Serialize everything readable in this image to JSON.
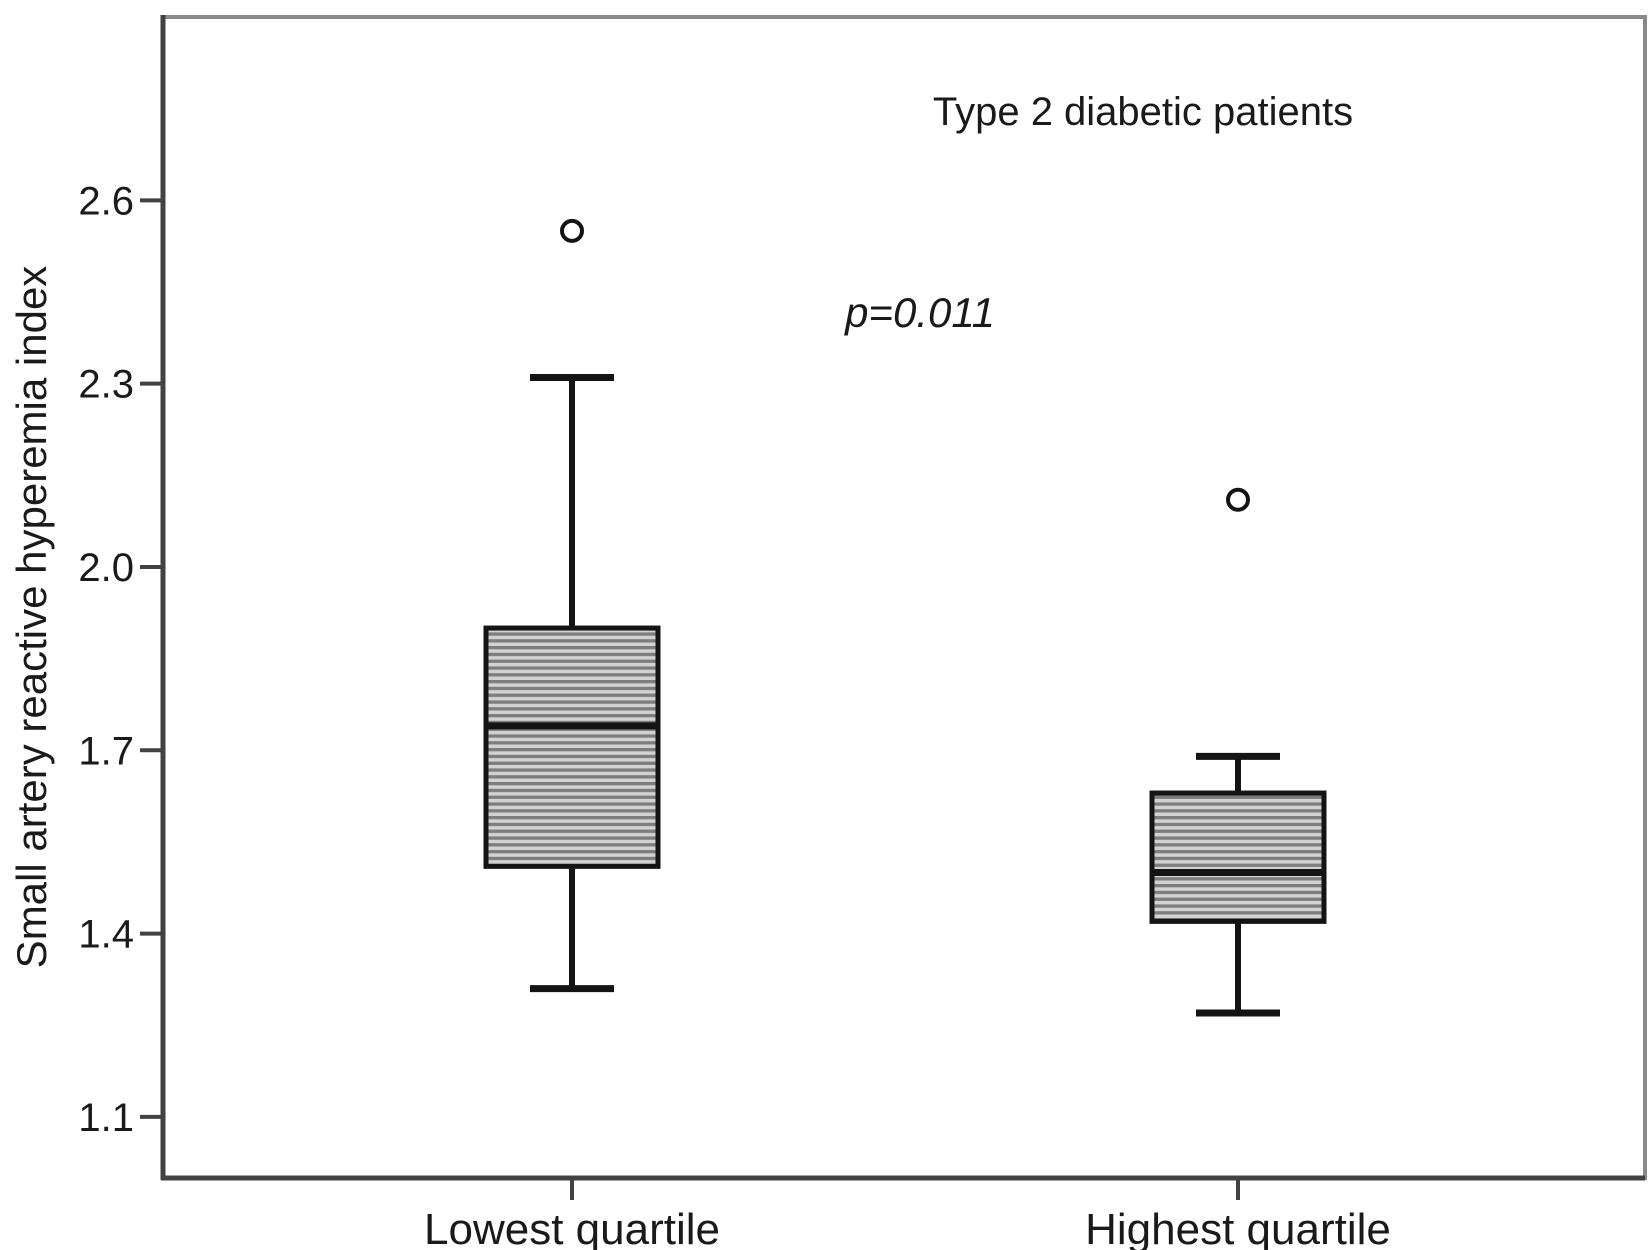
{
  "chart_data": {
    "type": "boxplot",
    "title": "Type 2 diabetic patients",
    "annotation": "p=0.011",
    "ylabel": "Small artery reactive hyperemia index",
    "xlabel": "",
    "categories": [
      "Lowest quartile",
      "Highest quartile"
    ],
    "yaxis": {
      "ticks": [
        "1.1",
        "1.4",
        "1.7",
        "2.0",
        "2.3",
        "2.6"
      ],
      "range": [
        1.0,
        2.9
      ]
    },
    "series": [
      {
        "category": "Lowest quartile",
        "whisker_low": 1.31,
        "q1": 1.51,
        "median": 1.74,
        "q3": 1.9,
        "whisker_high": 2.31,
        "outliers": [
          2.55
        ]
      },
      {
        "category": "Highest quartile",
        "whisker_low": 1.27,
        "q1": 1.42,
        "median": 1.5,
        "q3": 1.63,
        "whisker_high": 1.69,
        "outliers": [
          2.11
        ]
      }
    ],
    "legend": "none",
    "grid": "off",
    "style": {
      "box_fill_light": "#d2d2d2",
      "box_stripe_dark": "#7d7d7d",
      "box_border": "#141414",
      "median_color": "#141414",
      "whisker_color": "#141414",
      "outlier_stroke": "#141414",
      "axis_color": "#424242",
      "frame_color": "#8a8a8a",
      "text_color": "#1a1a1a",
      "background": "#ffffff"
    }
  }
}
